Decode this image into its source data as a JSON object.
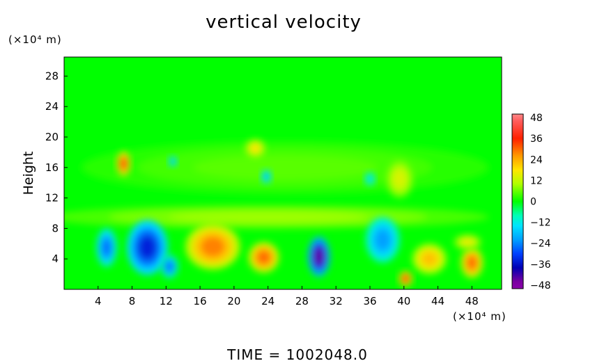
{
  "chart_data": {
    "type": "heatmap",
    "title": "vertical velocity",
    "xlabel": "",
    "ylabel": "Height",
    "x_unit": "(×10⁴ m)",
    "y_unit": "(×10⁴ m)",
    "xlim": [
      0,
      51.5
    ],
    "ylim": [
      0,
      30.5
    ],
    "x_ticks": [
      4,
      8,
      12,
      16,
      20,
      24,
      28,
      32,
      36,
      40,
      44,
      48
    ],
    "y_ticks": [
      4,
      8,
      12,
      16,
      20,
      24,
      28
    ],
    "colorbar": {
      "range": [
        -50,
        50
      ],
      "ticks": [
        48,
        36,
        24,
        12,
        0,
        -12,
        -24,
        -36,
        -48
      ],
      "tick_labels": [
        "48",
        "36",
        "24",
        "12",
        "0",
        "−12",
        "−24",
        "−36",
        "−48"
      ]
    },
    "background_value": 0,
    "features": [
      {
        "x": 5.0,
        "y": 5.5,
        "rx": 1.2,
        "ry": 2.5,
        "value": -26
      },
      {
        "x": 9.8,
        "y": 5.5,
        "rx": 2.4,
        "ry": 3.6,
        "value": -34
      },
      {
        "x": 12.4,
        "y": 3.0,
        "rx": 1.0,
        "ry": 1.5,
        "value": -26
      },
      {
        "x": 7.0,
        "y": 16.5,
        "rx": 0.8,
        "ry": 1.6,
        "value": 34
      },
      {
        "x": 12.8,
        "y": 16.8,
        "rx": 0.5,
        "ry": 0.7,
        "value": -20
      },
      {
        "x": 17.5,
        "y": 5.6,
        "rx": 3.2,
        "ry": 3.0,
        "value": 28
      },
      {
        "x": 23.5,
        "y": 4.2,
        "rx": 1.8,
        "ry": 2.0,
        "value": 30
      },
      {
        "x": 22.5,
        "y": 18.5,
        "rx": 1.2,
        "ry": 1.2,
        "value": 18
      },
      {
        "x": 23.8,
        "y": 14.8,
        "rx": 0.6,
        "ry": 0.9,
        "value": -20
      },
      {
        "x": 30.0,
        "y": 4.3,
        "rx": 1.3,
        "ry": 2.6,
        "value": -44
      },
      {
        "x": 37.5,
        "y": 6.5,
        "rx": 2.0,
        "ry": 3.0,
        "value": -22
      },
      {
        "x": 36.0,
        "y": 14.5,
        "rx": 0.6,
        "ry": 0.9,
        "value": -16
      },
      {
        "x": 39.5,
        "y": 14.5,
        "rx": 1.6,
        "ry": 2.5,
        "value": 14
      },
      {
        "x": 40.2,
        "y": 1.4,
        "rx": 0.8,
        "ry": 1.0,
        "value": 36
      },
      {
        "x": 43.0,
        "y": 4.0,
        "rx": 2.0,
        "ry": 2.0,
        "value": 22
      },
      {
        "x": 48.0,
        "y": 3.5,
        "rx": 1.3,
        "ry": 2.0,
        "value": 30
      },
      {
        "x": 47.5,
        "y": 6.2,
        "rx": 1.6,
        "ry": 1.0,
        "value": 16
      },
      {
        "x": 24.0,
        "y": 9.5,
        "rx": 26.0,
        "ry": 1.6,
        "value": 9
      },
      {
        "x": 26.0,
        "y": 16.0,
        "rx": 24.0,
        "ry": 3.5,
        "value": 5
      }
    ],
    "footer": "TIME  =  1002048.0"
  }
}
